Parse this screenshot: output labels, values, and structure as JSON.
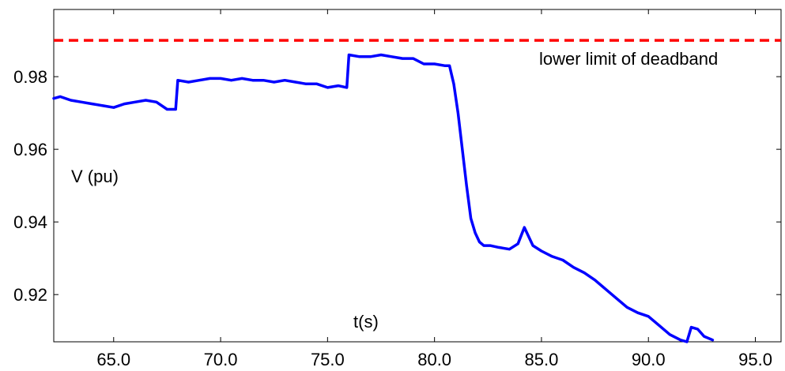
{
  "chart_data": {
    "type": "line",
    "title": "",
    "xlabel": "t(s)",
    "ylabel": "V (pu)",
    "xlim": [
      62.2,
      96.2
    ],
    "ylim": [
      0.907,
      0.9985
    ],
    "x_ticks": [
      65,
      70,
      75,
      80,
      85,
      90,
      95
    ],
    "x_tick_labels": [
      "65.0",
      "70.0",
      "75.0",
      "80.0",
      "85.0",
      "90.0",
      "95.0"
    ],
    "y_ticks": [
      0.92,
      0.94,
      0.96,
      0.98
    ],
    "y_tick_labels": [
      "0.92",
      "0.94",
      "0.96",
      "0.98"
    ],
    "grid": false,
    "reference_line": {
      "y": 0.99,
      "label": "lower limit of deadband",
      "color": "#ff0000",
      "style": "dashed"
    },
    "series": [
      {
        "color": "#0000ff",
        "x": [
          62.2,
          62.5,
          63.0,
          63.5,
          64.0,
          64.5,
          65.0,
          65.5,
          66.0,
          66.5,
          67.0,
          67.5,
          67.9,
          68.0,
          68.5,
          69.0,
          69.5,
          70.0,
          70.5,
          71.0,
          71.5,
          72.0,
          72.5,
          73.0,
          73.5,
          74.0,
          74.5,
          75.0,
          75.5,
          75.9,
          76.0,
          76.5,
          77.0,
          77.5,
          78.0,
          78.5,
          79.0,
          79.5,
          80.0,
          80.5,
          80.7,
          80.9,
          81.1,
          81.3,
          81.5,
          81.7,
          81.9,
          82.1,
          82.3,
          82.6,
          83.0,
          83.5,
          83.9,
          84.2,
          84.4,
          84.6,
          85.0,
          85.5,
          86.0,
          86.5,
          87.0,
          87.5,
          88.0,
          88.5,
          89.0,
          89.5,
          90.0,
          90.5,
          91.0,
          91.5,
          91.8,
          92.0,
          92.3,
          92.6,
          93.0
        ],
        "values": [
          0.974,
          0.9745,
          0.9735,
          0.973,
          0.9725,
          0.972,
          0.9715,
          0.9725,
          0.973,
          0.9735,
          0.973,
          0.971,
          0.971,
          0.979,
          0.9785,
          0.979,
          0.9795,
          0.9795,
          0.979,
          0.9795,
          0.979,
          0.979,
          0.9785,
          0.979,
          0.9785,
          0.978,
          0.978,
          0.977,
          0.9775,
          0.977,
          0.986,
          0.9855,
          0.9855,
          0.986,
          0.9855,
          0.985,
          0.985,
          0.9835,
          0.9835,
          0.983,
          0.983,
          0.978,
          0.97,
          0.96,
          0.95,
          0.941,
          0.937,
          0.9345,
          0.9335,
          0.9335,
          0.933,
          0.9325,
          0.934,
          0.9385,
          0.936,
          0.9335,
          0.932,
          0.9305,
          0.9295,
          0.9275,
          0.926,
          0.924,
          0.9215,
          0.919,
          0.9165,
          0.915,
          0.914,
          0.9115,
          0.909,
          0.9075,
          0.907,
          0.911,
          0.9105,
          0.9085,
          0.9075
        ]
      }
    ]
  }
}
